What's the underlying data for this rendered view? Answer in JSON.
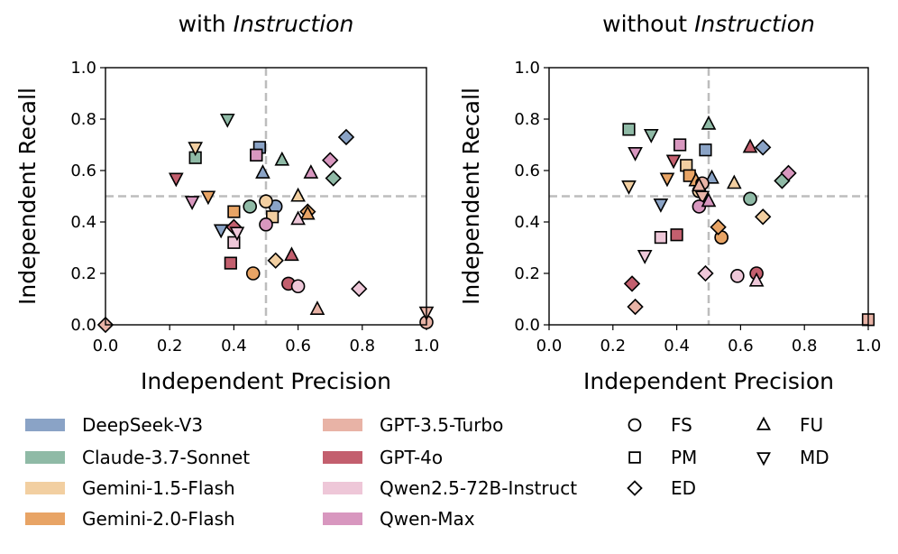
{
  "colors": {
    "DeepSeek-V3": "#8aa3c6",
    "Claude-3.7-Sonnet": "#8fbaa6",
    "Gemini-1.5-Flash": "#f2cfa1",
    "Gemini-2.0-Flash": "#e8a465",
    "GPT-3.5-Turbo": "#e8b3a6",
    "GPT-4o": "#c35f6e",
    "Qwen2.5-72B-Instruct": "#eec7d8",
    "Qwen-Max": "#d897bf"
  },
  "legend": {
    "models": [
      "DeepSeek-V3",
      "Claude-3.7-Sonnet",
      "Gemini-1.5-Flash",
      "Gemini-2.0-Flash",
      "GPT-3.5-Turbo",
      "GPT-4o",
      "Qwen2.5-72B-Instruct",
      "Qwen-Max"
    ],
    "markers": [
      {
        "label": "FS",
        "marker": "circle"
      },
      {
        "label": "PM",
        "marker": "square"
      },
      {
        "label": "ED",
        "marker": "diamond"
      },
      {
        "label": "FU",
        "marker": "triangle-up"
      },
      {
        "label": "MD",
        "marker": "triangle-down"
      }
    ]
  },
  "chart_data": [
    {
      "type": "scatter",
      "title_prefix": "with ",
      "title_italic": "Instruction",
      "xlabel": "Independent Precision",
      "ylabel": "Independent  Recall",
      "xlim": [
        0.0,
        1.0
      ],
      "ylim": [
        0.0,
        1.0
      ],
      "xticks": [
        "0.0",
        "0.2",
        "0.4",
        "0.6",
        "0.8",
        "1.0"
      ],
      "yticks": [
        "0.0",
        "0.2",
        "0.4",
        "0.6",
        "0.8",
        "1.0"
      ],
      "reference_lines": {
        "x": 0.5,
        "y": 0.5
      },
      "points": [
        {
          "model": "DeepSeek-V3",
          "marker": "circle",
          "x": 0.53,
          "y": 0.46
        },
        {
          "model": "DeepSeek-V3",
          "marker": "square",
          "x": 0.48,
          "y": 0.69
        },
        {
          "model": "DeepSeek-V3",
          "marker": "diamond",
          "x": 0.75,
          "y": 0.73
        },
        {
          "model": "DeepSeek-V3",
          "marker": "triangle-up",
          "x": 0.49,
          "y": 0.59
        },
        {
          "model": "DeepSeek-V3",
          "marker": "triangle-down",
          "x": 0.36,
          "y": 0.37
        },
        {
          "model": "Claude-3.7-Sonnet",
          "marker": "circle",
          "x": 0.45,
          "y": 0.46
        },
        {
          "model": "Claude-3.7-Sonnet",
          "marker": "square",
          "x": 0.28,
          "y": 0.65
        },
        {
          "model": "Claude-3.7-Sonnet",
          "marker": "diamond",
          "x": 0.71,
          "y": 0.57
        },
        {
          "model": "Claude-3.7-Sonnet",
          "marker": "triangle-up",
          "x": 0.55,
          "y": 0.64
        },
        {
          "model": "Claude-3.7-Sonnet",
          "marker": "triangle-down",
          "x": 0.38,
          "y": 0.8
        },
        {
          "model": "Gemini-1.5-Flash",
          "marker": "circle",
          "x": 0.5,
          "y": 0.48
        },
        {
          "model": "Gemini-1.5-Flash",
          "marker": "square",
          "x": 0.52,
          "y": 0.42
        },
        {
          "model": "Gemini-1.5-Flash",
          "marker": "diamond",
          "x": 0.53,
          "y": 0.25
        },
        {
          "model": "Gemini-1.5-Flash",
          "marker": "triangle-up",
          "x": 0.6,
          "y": 0.5
        },
        {
          "model": "Gemini-1.5-Flash",
          "marker": "triangle-down",
          "x": 0.28,
          "y": 0.69
        },
        {
          "model": "Gemini-2.0-Flash",
          "marker": "circle",
          "x": 0.46,
          "y": 0.2
        },
        {
          "model": "Gemini-2.0-Flash",
          "marker": "square",
          "x": 0.4,
          "y": 0.44
        },
        {
          "model": "Gemini-2.0-Flash",
          "marker": "diamond",
          "x": 0.63,
          "y": 0.44
        },
        {
          "model": "Gemini-2.0-Flash",
          "marker": "triangle-up",
          "x": 0.63,
          "y": 0.43
        },
        {
          "model": "Gemini-2.0-Flash",
          "marker": "triangle-down",
          "x": 0.32,
          "y": 0.5
        },
        {
          "model": "GPT-3.5-Turbo",
          "marker": "circle",
          "x": 1.0,
          "y": 0.01
        },
        {
          "model": "GPT-3.5-Turbo",
          "marker": "square",
          "x": 0.47,
          "y": 0.66
        },
        {
          "model": "GPT-3.5-Turbo",
          "marker": "diamond",
          "x": 0.0,
          "y": 0.0
        },
        {
          "model": "GPT-3.5-Turbo",
          "marker": "triangle-up",
          "x": 0.66,
          "y": 0.06
        },
        {
          "model": "GPT-3.5-Turbo",
          "marker": "triangle-down",
          "x": 1.0,
          "y": 0.05
        },
        {
          "model": "GPT-4o",
          "marker": "circle",
          "x": 0.57,
          "y": 0.16
        },
        {
          "model": "GPT-4o",
          "marker": "square",
          "x": 0.39,
          "y": 0.24
        },
        {
          "model": "GPT-4o",
          "marker": "diamond",
          "x": 0.4,
          "y": 0.38
        },
        {
          "model": "GPT-4o",
          "marker": "triangle-up",
          "x": 0.58,
          "y": 0.27
        },
        {
          "model": "GPT-4o",
          "marker": "triangle-down",
          "x": 0.22,
          "y": 0.57
        },
        {
          "model": "Qwen2.5-72B-Instruct",
          "marker": "circle",
          "x": 0.6,
          "y": 0.15
        },
        {
          "model": "Qwen2.5-72B-Instruct",
          "marker": "square",
          "x": 0.4,
          "y": 0.32
        },
        {
          "model": "Qwen2.5-72B-Instruct",
          "marker": "diamond",
          "x": 0.79,
          "y": 0.14
        },
        {
          "model": "Qwen2.5-72B-Instruct",
          "marker": "triangle-up",
          "x": 0.6,
          "y": 0.41
        },
        {
          "model": "Qwen2.5-72B-Instruct",
          "marker": "triangle-down",
          "x": 0.41,
          "y": 0.36
        },
        {
          "model": "Qwen-Max",
          "marker": "circle",
          "x": 0.5,
          "y": 0.39
        },
        {
          "model": "Qwen-Max",
          "marker": "square",
          "x": 0.47,
          "y": 0.66
        },
        {
          "model": "Qwen-Max",
          "marker": "diamond",
          "x": 0.7,
          "y": 0.64
        },
        {
          "model": "Qwen-Max",
          "marker": "triangle-up",
          "x": 0.64,
          "y": 0.59
        },
        {
          "model": "Qwen-Max",
          "marker": "triangle-down",
          "x": 0.27,
          "y": 0.48
        }
      ]
    },
    {
      "type": "scatter",
      "title_prefix": "without ",
      "title_italic": "Instruction",
      "xlabel": "Independent Precision",
      "ylabel": "Independent  Recall",
      "xlim": [
        0.0,
        1.0
      ],
      "ylim": [
        0.0,
        1.0
      ],
      "xticks": [
        "0.0",
        "0.2",
        "0.4",
        "0.6",
        "0.8",
        "1.0"
      ],
      "yticks": [
        "0.0",
        "0.2",
        "0.4",
        "0.6",
        "0.8",
        "1.0"
      ],
      "reference_lines": {
        "x": 0.5,
        "y": 0.5
      },
      "points": [
        {
          "model": "DeepSeek-V3",
          "marker": "circle",
          "x": 0.54,
          "y": 0.34
        },
        {
          "model": "DeepSeek-V3",
          "marker": "square",
          "x": 0.49,
          "y": 0.68
        },
        {
          "model": "DeepSeek-V3",
          "marker": "diamond",
          "x": 0.67,
          "y": 0.69
        },
        {
          "model": "DeepSeek-V3",
          "marker": "triangle-up",
          "x": 0.51,
          "y": 0.57
        },
        {
          "model": "DeepSeek-V3",
          "marker": "triangle-down",
          "x": 0.35,
          "y": 0.47
        },
        {
          "model": "Claude-3.7-Sonnet",
          "marker": "circle",
          "x": 0.63,
          "y": 0.49
        },
        {
          "model": "Claude-3.7-Sonnet",
          "marker": "square",
          "x": 0.25,
          "y": 0.76
        },
        {
          "model": "Claude-3.7-Sonnet",
          "marker": "diamond",
          "x": 0.73,
          "y": 0.56
        },
        {
          "model": "Claude-3.7-Sonnet",
          "marker": "triangle-up",
          "x": 0.5,
          "y": 0.78
        },
        {
          "model": "Claude-3.7-Sonnet",
          "marker": "triangle-down",
          "x": 0.32,
          "y": 0.74
        },
        {
          "model": "Gemini-1.5-Flash",
          "marker": "circle",
          "x": 0.47,
          "y": 0.52
        },
        {
          "model": "Gemini-1.5-Flash",
          "marker": "square",
          "x": 0.43,
          "y": 0.62
        },
        {
          "model": "Gemini-1.5-Flash",
          "marker": "diamond",
          "x": 0.67,
          "y": 0.42
        },
        {
          "model": "Gemini-1.5-Flash",
          "marker": "triangle-up",
          "x": 0.58,
          "y": 0.55
        },
        {
          "model": "Gemini-1.5-Flash",
          "marker": "triangle-down",
          "x": 0.25,
          "y": 0.54
        },
        {
          "model": "Gemini-2.0-Flash",
          "marker": "circle",
          "x": 0.54,
          "y": 0.34
        },
        {
          "model": "Gemini-2.0-Flash",
          "marker": "square",
          "x": 0.44,
          "y": 0.58
        },
        {
          "model": "Gemini-2.0-Flash",
          "marker": "diamond",
          "x": 0.53,
          "y": 0.38
        },
        {
          "model": "Gemini-2.0-Flash",
          "marker": "triangle-up",
          "x": 0.46,
          "y": 0.56
        },
        {
          "model": "Gemini-2.0-Flash",
          "marker": "triangle-down",
          "x": 0.37,
          "y": 0.57
        },
        {
          "model": "GPT-3.5-Turbo",
          "marker": "circle",
          "x": 0.48,
          "y": 0.55
        },
        {
          "model": "GPT-3.5-Turbo",
          "marker": "square",
          "x": 1.0,
          "y": 0.02
        },
        {
          "model": "GPT-3.5-Turbo",
          "marker": "diamond",
          "x": 0.27,
          "y": 0.07
        },
        {
          "model": "GPT-3.5-Turbo",
          "marker": "triangle-up",
          "x": 0.47,
          "y": 0.54
        },
        {
          "model": "GPT-3.5-Turbo",
          "marker": "triangle-down",
          "x": 0.48,
          "y": 0.5
        },
        {
          "model": "GPT-4o",
          "marker": "circle",
          "x": 0.65,
          "y": 0.2
        },
        {
          "model": "GPT-4o",
          "marker": "square",
          "x": 0.4,
          "y": 0.35
        },
        {
          "model": "GPT-4o",
          "marker": "diamond",
          "x": 0.26,
          "y": 0.16
        },
        {
          "model": "GPT-4o",
          "marker": "triangle-up",
          "x": 0.63,
          "y": 0.69
        },
        {
          "model": "GPT-4o",
          "marker": "triangle-down",
          "x": 0.39,
          "y": 0.64
        },
        {
          "model": "Qwen2.5-72B-Instruct",
          "marker": "circle",
          "x": 0.59,
          "y": 0.19
        },
        {
          "model": "Qwen2.5-72B-Instruct",
          "marker": "square",
          "x": 0.35,
          "y": 0.34
        },
        {
          "model": "Qwen2.5-72B-Instruct",
          "marker": "diamond",
          "x": 0.49,
          "y": 0.2
        },
        {
          "model": "Qwen2.5-72B-Instruct",
          "marker": "triangle-up",
          "x": 0.65,
          "y": 0.17
        },
        {
          "model": "Qwen2.5-72B-Instruct",
          "marker": "triangle-down",
          "x": 0.3,
          "y": 0.27
        },
        {
          "model": "Qwen-Max",
          "marker": "circle",
          "x": 0.47,
          "y": 0.46
        },
        {
          "model": "Qwen-Max",
          "marker": "square",
          "x": 0.41,
          "y": 0.7
        },
        {
          "model": "Qwen-Max",
          "marker": "diamond",
          "x": 0.75,
          "y": 0.59
        },
        {
          "model": "Qwen-Max",
          "marker": "triangle-up",
          "x": 0.5,
          "y": 0.48
        },
        {
          "model": "Qwen-Max",
          "marker": "triangle-down",
          "x": 0.27,
          "y": 0.67
        }
      ]
    }
  ]
}
